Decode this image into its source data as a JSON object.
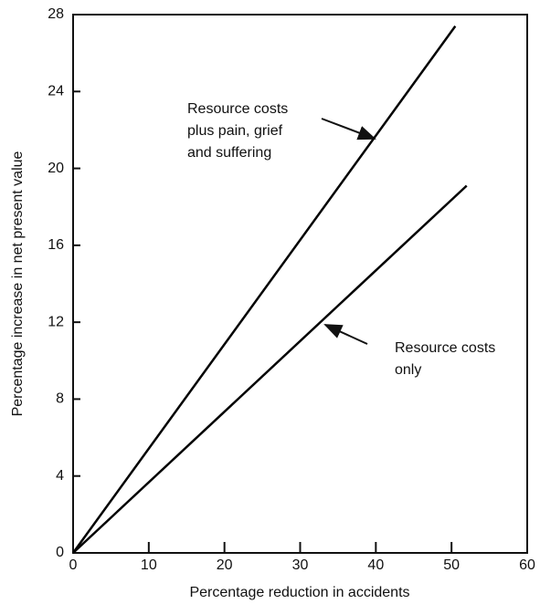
{
  "chart_data": {
    "type": "line",
    "xlabel": "Percentage reduction in accidents",
    "ylabel": "Percentage increase in net present value",
    "xlim": [
      0,
      60
    ],
    "xticks": [
      0,
      10,
      20,
      30,
      40,
      50,
      60
    ],
    "ylim": [
      0,
      28
    ],
    "yticks": [
      0,
      4,
      8,
      12,
      16,
      20,
      24,
      28
    ],
    "grid": false,
    "series": [
      {
        "color": "#000000",
        "x": [
          0,
          50.5
        ],
        "values": [
          0,
          27.4
        ]
      },
      {
        "color": "#000000",
        "x": [
          0,
          52
        ],
        "values": [
          0,
          19.1
        ]
      }
    ],
    "annotations": [
      {
        "lines": [
          "Resource costs",
          "plus pain, grief",
          "and suffering"
        ]
      },
      {
        "lines": [
          "Resource costs",
          "only"
        ]
      }
    ]
  }
}
